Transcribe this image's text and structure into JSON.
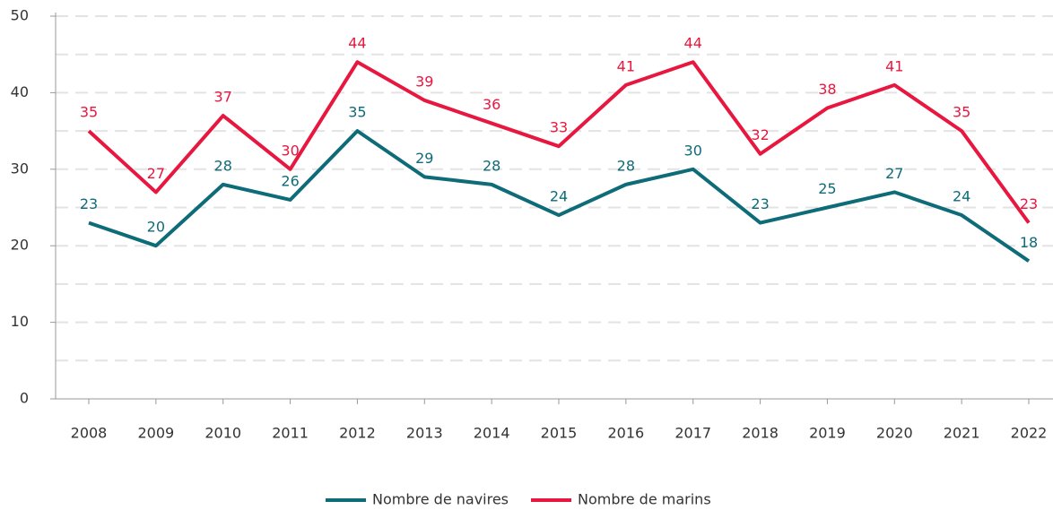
{
  "chart_data": {
    "type": "line",
    "categories": [
      "2008",
      "2009",
      "2010",
      "2011",
      "2012",
      "2013",
      "2014",
      "2015",
      "2016",
      "2017",
      "2018",
      "2019",
      "2020",
      "2021",
      "2022"
    ],
    "series": [
      {
        "name": "Nombre de navires",
        "color": "#0e6b78",
        "values": [
          23,
          20,
          28,
          26,
          35,
          29,
          28,
          24,
          28,
          30,
          23,
          25,
          27,
          24,
          18
        ]
      },
      {
        "name": "Nombre de marins",
        "color": "#e8173f",
        "values": [
          35,
          27,
          37,
          30,
          44,
          39,
          36,
          33,
          41,
          44,
          32,
          38,
          41,
          35,
          23
        ]
      }
    ],
    "ylim": [
      0,
      50
    ],
    "yticks": [
      0,
      10,
      20,
      30,
      40,
      50
    ],
    "grid": true,
    "data_labels": true
  }
}
